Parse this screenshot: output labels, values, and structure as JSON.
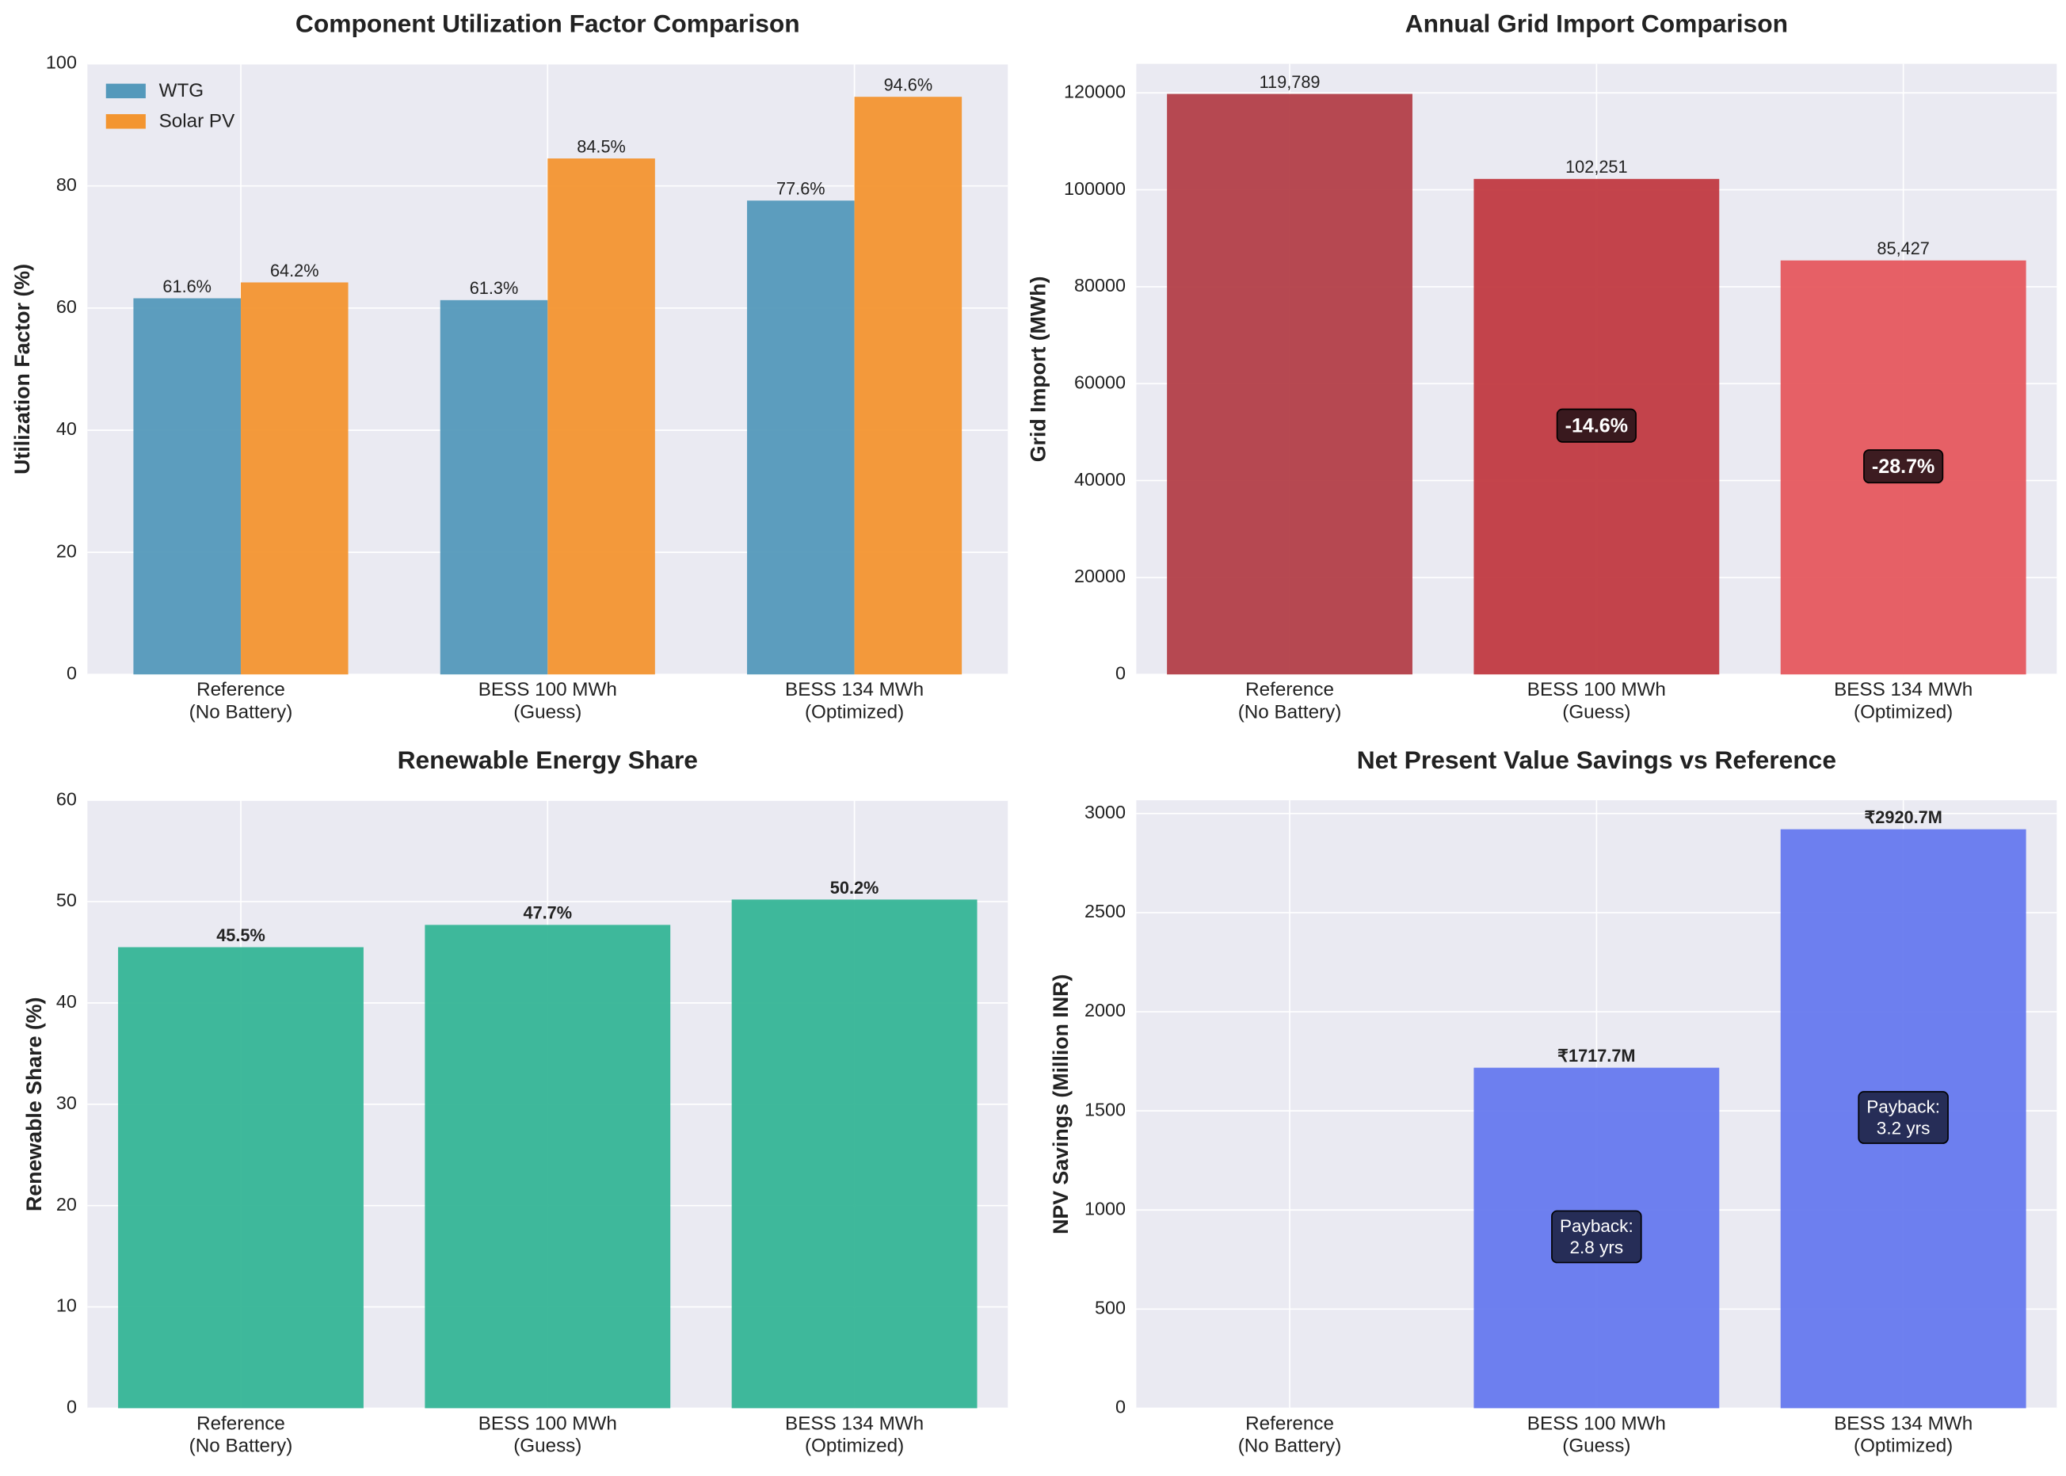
{
  "chart_data": [
    {
      "type": "bar",
      "title": "Component Utilization Factor Comparison",
      "ylabel": "Utilization Factor (%)",
      "categories": [
        "Reference\n(No Battery)",
        "BESS 100 MWh\n(Guess)",
        "BESS 134 MWh\n(Optimized)"
      ],
      "series": [
        {
          "name": "WTG",
          "color": "#5499bb",
          "values": [
            61.6,
            61.3,
            77.6
          ],
          "value_labels": [
            "61.6%",
            "61.3%",
            "77.6%"
          ]
        },
        {
          "name": "Solar PV",
          "color": "#f39530",
          "values": [
            64.2,
            84.5,
            94.6
          ],
          "value_labels": [
            "64.2%",
            "84.5%",
            "94.6%"
          ]
        }
      ],
      "ylim": [
        0,
        100
      ],
      "yticks": [
        0,
        20,
        40,
        60,
        80,
        100
      ],
      "grid": true,
      "legend": "upper left"
    },
    {
      "type": "bar",
      "title": "Annual Grid Import Comparison",
      "ylabel": "Grid Import (MWh)",
      "categories": [
        "Reference\n(No Battery)",
        "BESS 100 MWh\n(Guess)",
        "BESS 134 MWh\n(Optimized)"
      ],
      "values": [
        119789,
        102251,
        85427
      ],
      "value_labels": [
        "119,789",
        "102,251",
        "85,427"
      ],
      "colors": [
        "#b33f48",
        "#c13a41",
        "#e6585e"
      ],
      "annotations": [
        null,
        "-14.6%",
        "-28.7%"
      ],
      "ylim": [
        0,
        126000
      ],
      "yticks": [
        0,
        20000,
        40000,
        60000,
        80000,
        100000,
        120000
      ],
      "grid": true
    },
    {
      "type": "bar",
      "title": "Renewable Energy Share",
      "ylabel": "Renewable Share (%)",
      "categories": [
        "Reference\n(No Battery)",
        "BESS 100 MWh\n(Guess)",
        "BESS 134 MWh\n(Optimized)"
      ],
      "values": [
        45.5,
        47.7,
        50.2
      ],
      "value_labels": [
        "45.5%",
        "47.7%",
        "50.2%"
      ],
      "color": "#35b596",
      "ylim": [
        0,
        60
      ],
      "yticks": [
        0,
        10,
        20,
        30,
        40,
        50,
        60
      ],
      "grid": true
    },
    {
      "type": "bar",
      "title": "Net Present Value Savings vs Reference",
      "ylabel": "NPV Savings (Million INR)",
      "categories": [
        "Reference\n(No Battery)",
        "BESS 100 MWh\n(Guess)",
        "BESS 134 MWh\n(Optimized)"
      ],
      "values": [
        0,
        1717.7,
        2920.7
      ],
      "value_labels": [
        null,
        "₹1717.7M",
        "₹2920.7M"
      ],
      "color": "#6679ee",
      "annotations": [
        null,
        "Payback:\n2.8 yrs",
        "Payback:\n3.2 yrs"
      ],
      "ylim": [
        0,
        3067
      ],
      "yticks": [
        0,
        500,
        1000,
        1500,
        2000,
        2500,
        3000
      ],
      "grid": true
    }
  ]
}
